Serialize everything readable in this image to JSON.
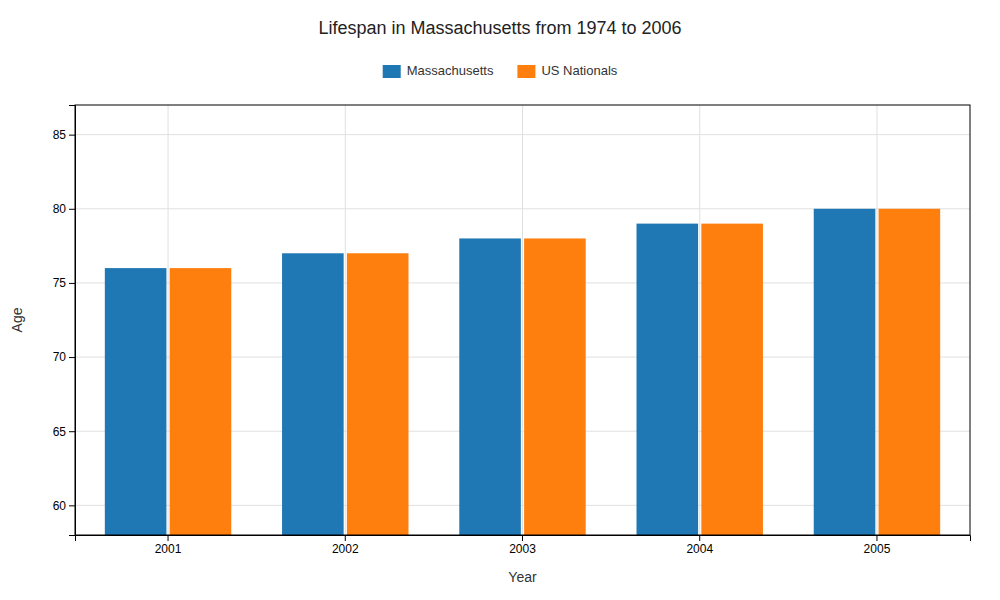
{
  "chart_data": {
    "type": "bar",
    "title": "Lifespan in Massachusetts from 1974 to 2006",
    "xlabel": "Year",
    "ylabel": "Age",
    "categories": [
      "2001",
      "2002",
      "2003",
      "2004",
      "2005"
    ],
    "series": [
      {
        "name": "Massachusetts",
        "values": [
          76,
          77,
          78,
          79,
          80
        ]
      },
      {
        "name": "US Nationals",
        "values": [
          76,
          77,
          78,
          79,
          80
        ]
      }
    ],
    "ylim": [
      58,
      87
    ],
    "yticks": [
      60,
      65,
      70,
      75,
      80,
      85
    ],
    "grid": true,
    "legend": "top"
  }
}
